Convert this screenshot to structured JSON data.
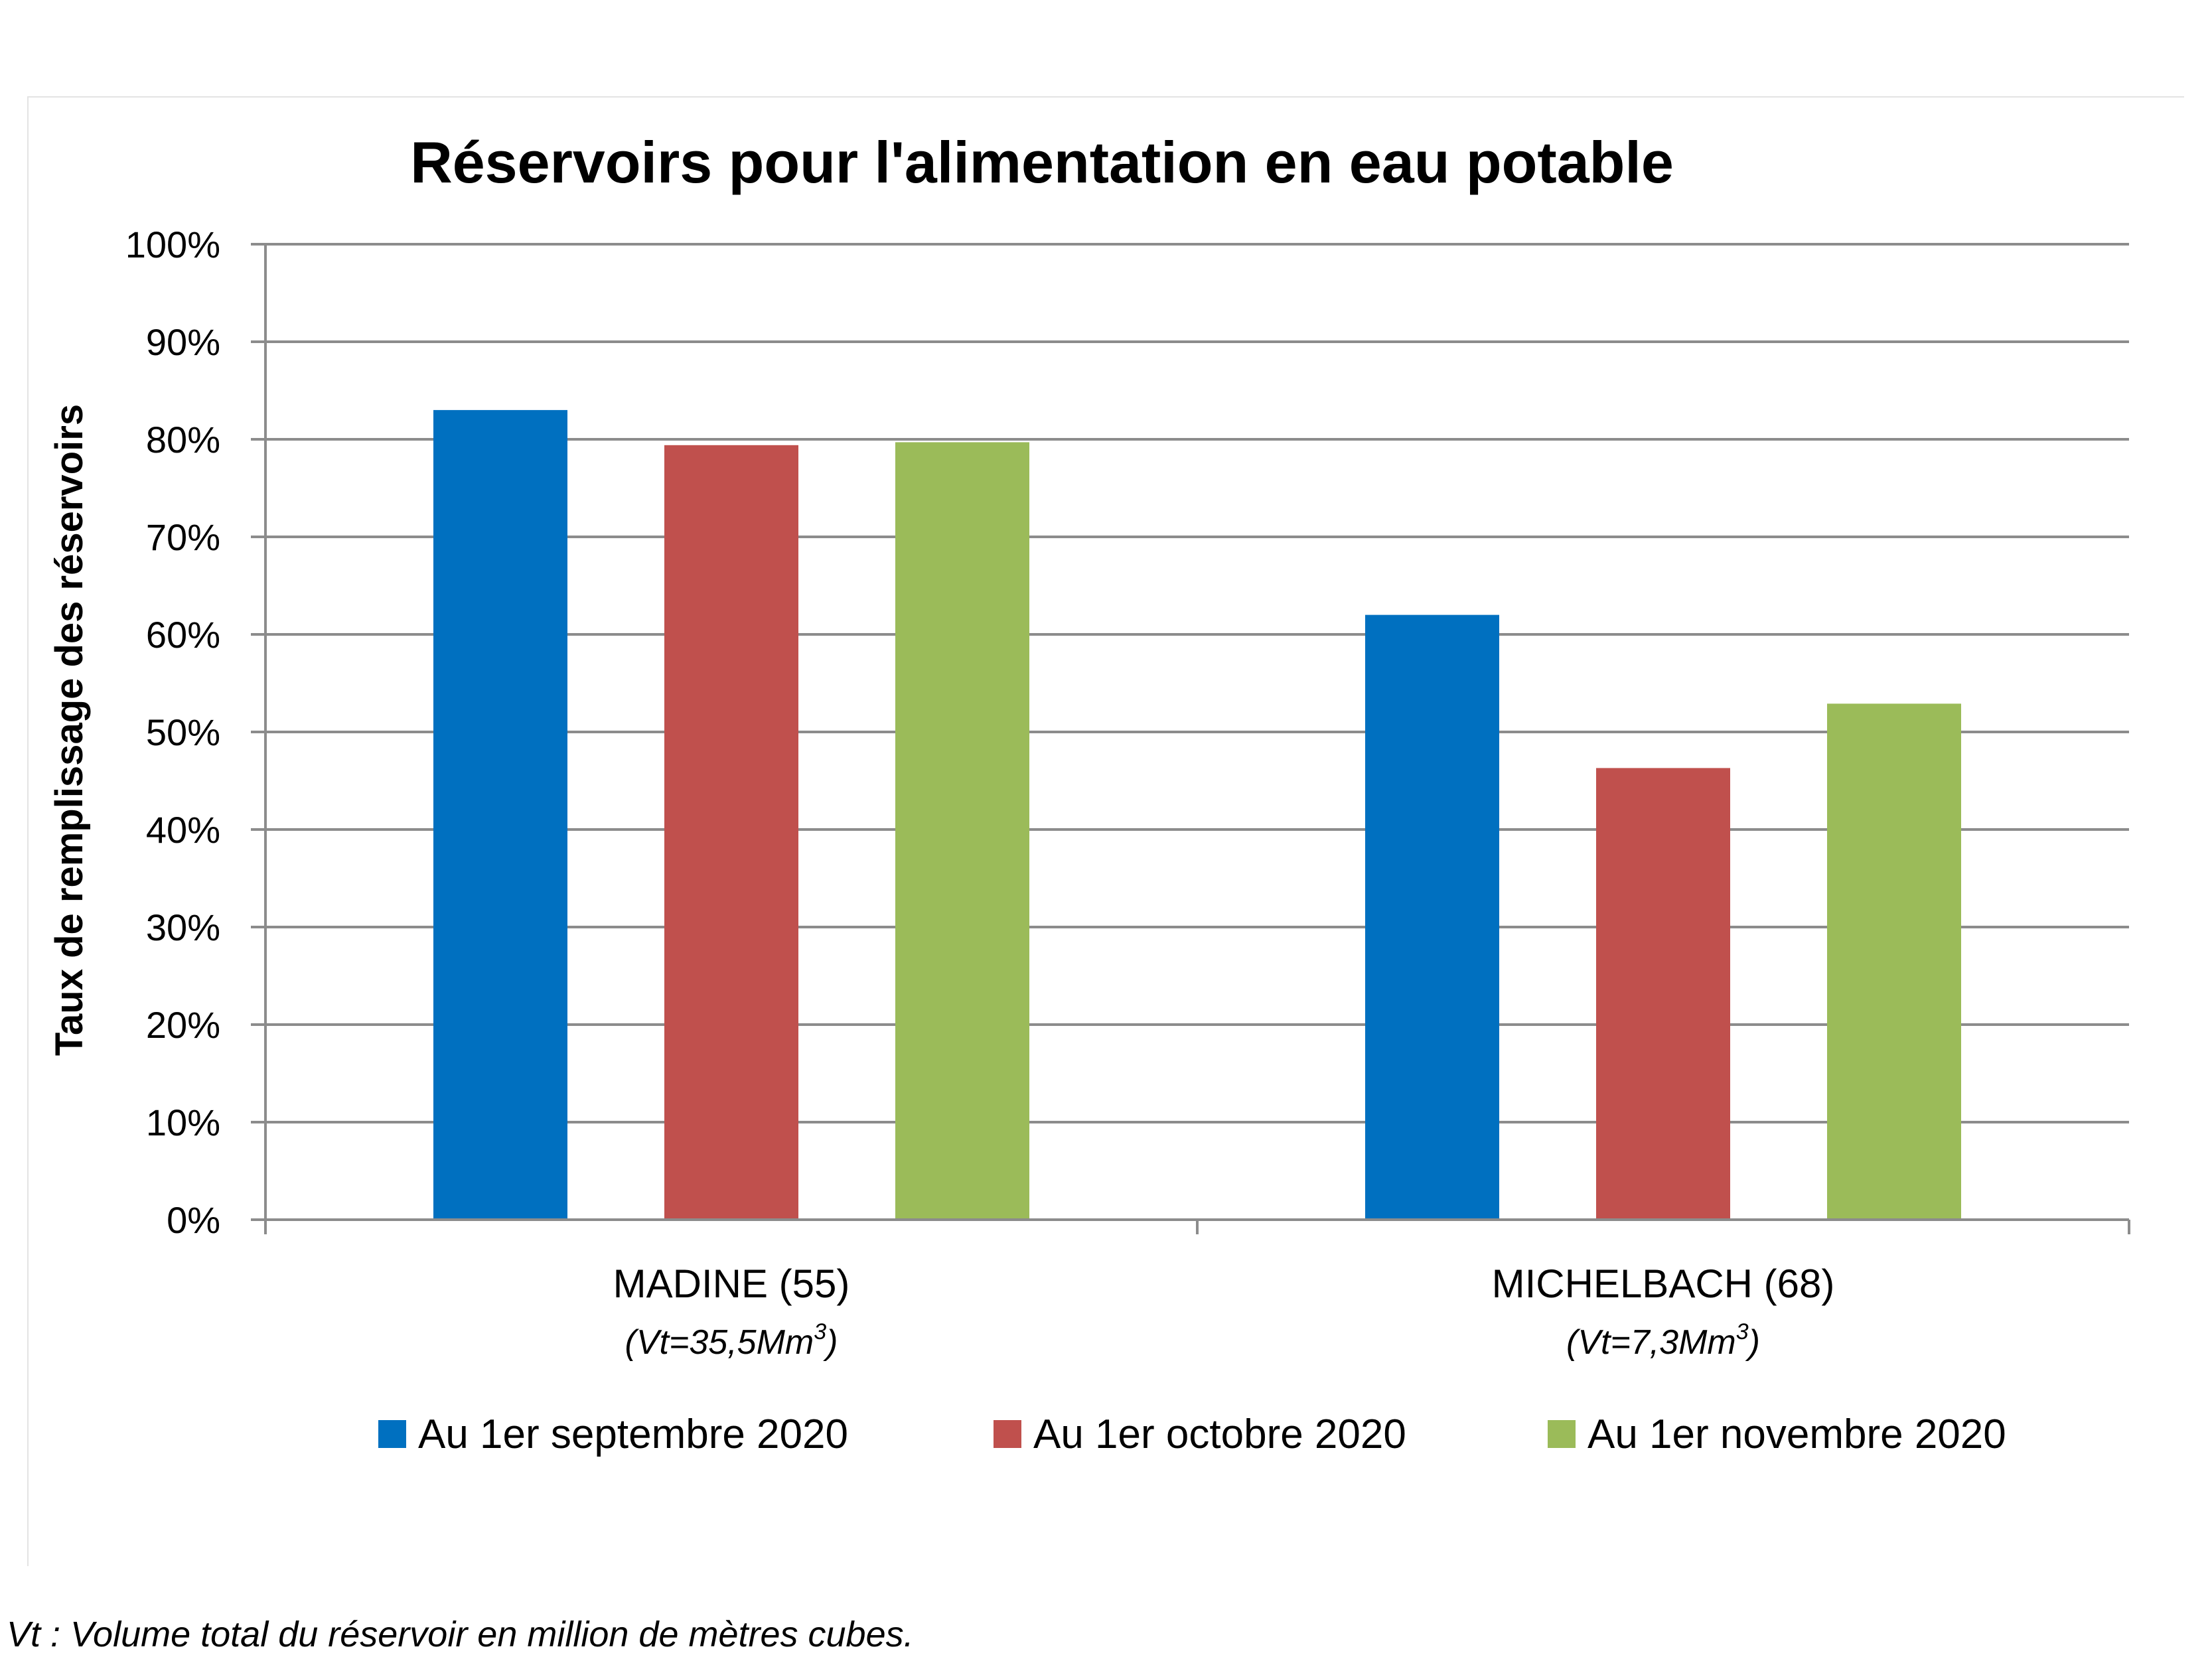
{
  "chart_data": {
    "type": "bar",
    "title": "Réservoirs pour l'alimentation en eau potable",
    "ylabel": "Taux de remplissage des réservoirs",
    "xlabel": "",
    "ylim": [
      0,
      100
    ],
    "yticks": [
      "0%",
      "10%",
      "20%",
      "30%",
      "40%",
      "50%",
      "60%",
      "70%",
      "80%",
      "90%",
      "100%"
    ],
    "grid": true,
    "legend_position": "bottom",
    "categories": [
      "MADINE (55)",
      "MICHELBACH (68)"
    ],
    "category_sublabels": [
      {
        "pre": "(Vt=35,5Mm",
        "sup": "3",
        "post": ")"
      },
      {
        "pre": "(Vt=7,3Mm",
        "sup": "3",
        "post": ")"
      }
    ],
    "series": [
      {
        "name": "Au 1er septembre 2020",
        "color": "#0070C0",
        "values": [
          83,
          62
        ]
      },
      {
        "name": "Au 1er octobre 2020",
        "color": "#C0504D",
        "values": [
          79.4,
          46.3
        ]
      },
      {
        "name": "Au 1er novembre 2020",
        "color": "#9BBB59",
        "values": [
          79.7,
          52.9
        ]
      }
    ]
  },
  "footnote": "Vt : Volume total du réservoir en million de mètres cubes."
}
